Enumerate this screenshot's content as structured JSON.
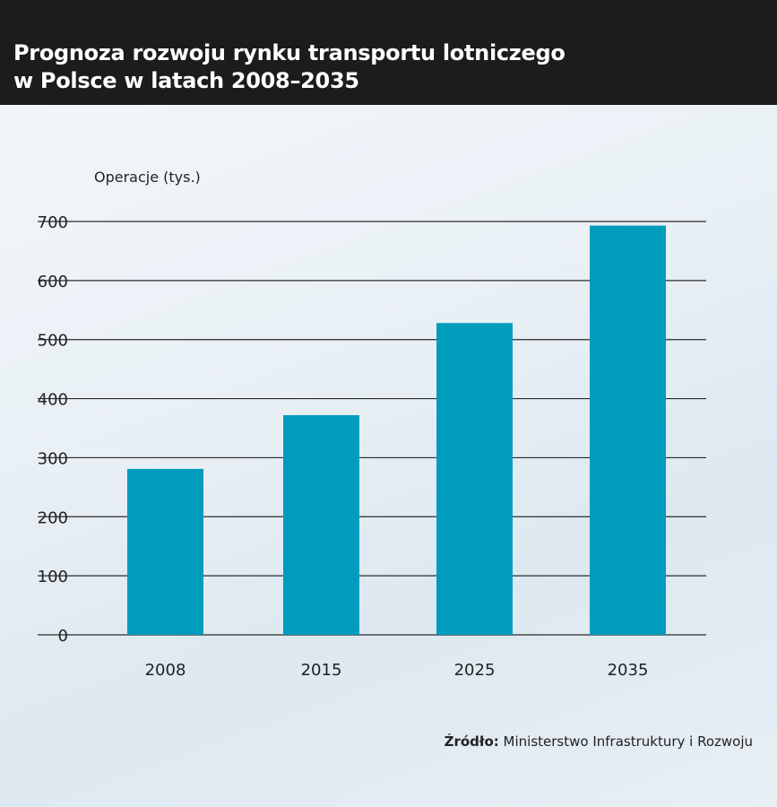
{
  "title_line1": "Prognoza rozwoju rynku transportu lotniczego",
  "title_line2": "w Polsce w latach 2008–2035",
  "source_label": "Źródło:",
  "source_text": "Ministerstwo Infrastruktury i Rozwoju",
  "chart_data": {
    "type": "bar",
    "categories": [
      "2008",
      "2015",
      "2025",
      "2035"
    ],
    "values": [
      281,
      372,
      528,
      693
    ],
    "ylabel": "Operacje (tys.)",
    "ylim": [
      0,
      700
    ],
    "yticks": [
      0,
      100,
      200,
      300,
      400,
      500,
      600,
      700
    ],
    "grid": true,
    "bar_color": "#009cbd"
  }
}
